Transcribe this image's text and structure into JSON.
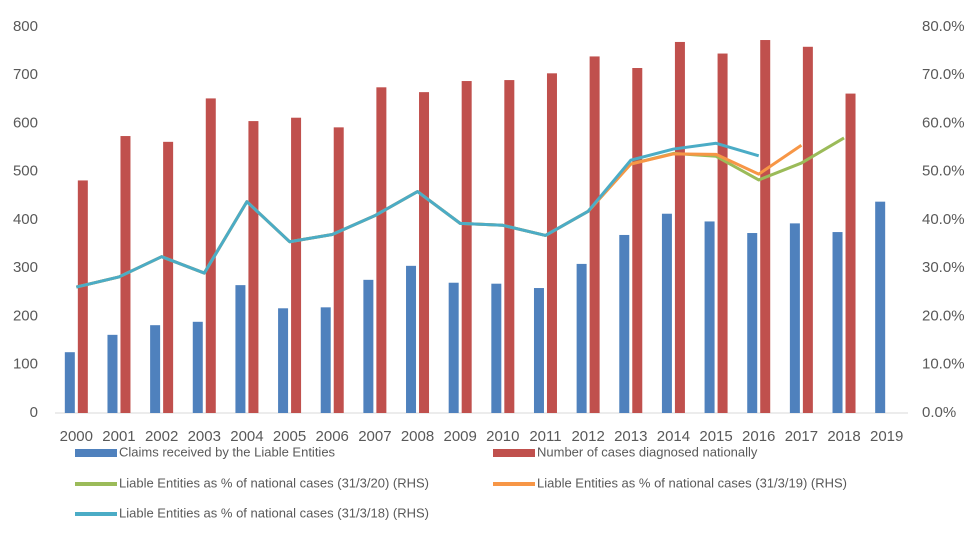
{
  "chart_data": {
    "type": "bar",
    "categories": [
      "2000",
      "2001",
      "2002",
      "2003",
      "2004",
      "2005",
      "2006",
      "2007",
      "2008",
      "2009",
      "2010",
      "2011",
      "2012",
      "2013",
      "2014",
      "2015",
      "2016",
      "2017",
      "2018",
      "2019"
    ],
    "series": [
      {
        "name": "Claims received by the Liable Entities",
        "type": "bar",
        "color": "#4f81bd",
        "values": [
          126,
          162,
          182,
          189,
          265,
          217,
          219,
          276,
          305,
          270,
          268,
          259,
          309,
          369,
          413,
          397,
          373,
          393,
          375,
          438
        ]
      },
      {
        "name": "Number of cases diagnosed nationally",
        "type": "bar",
        "color": "#c0504d",
        "values": [
          482,
          574,
          562,
          652,
          605,
          612,
          592,
          675,
          665,
          688,
          690,
          704,
          739,
          715,
          769,
          745,
          773,
          759,
          662,
          null
        ]
      },
      {
        "name": "Liable Entities as % of national cases (31/3/20) (RHS)",
        "type": "line",
        "axis": "y2",
        "color": "#9bbb59",
        "values": [
          26.1,
          28.2,
          32.4,
          29.0,
          43.8,
          35.5,
          37.0,
          40.9,
          45.9,
          39.3,
          38.9,
          36.8,
          41.8,
          51.6,
          53.8,
          53.2,
          48.3,
          51.8,
          57.0,
          null
        ]
      },
      {
        "name": "Liable Entities as % of national cases (31/3/19) (RHS)",
        "type": "line",
        "axis": "y2",
        "color": "#f79646",
        "values": [
          26.1,
          28.2,
          32.4,
          29.0,
          43.8,
          35.5,
          37.0,
          40.9,
          45.9,
          39.3,
          38.9,
          36.8,
          41.8,
          51.6,
          53.7,
          53.6,
          49.5,
          55.5,
          null,
          null
        ]
      },
      {
        "name": "Liable Entities as % of national cases (31/3/18) (RHS)",
        "type": "line",
        "axis": "y2",
        "color": "#4bacc6",
        "values": [
          26.1,
          28.2,
          32.4,
          29.0,
          43.8,
          35.5,
          37.0,
          40.9,
          45.9,
          39.3,
          38.9,
          36.8,
          41.8,
          52.4,
          54.7,
          55.9,
          53.3,
          null,
          null,
          null
        ]
      }
    ],
    "ylim": [
      0,
      800
    ],
    "yticks": [
      0,
      100,
      200,
      300,
      400,
      500,
      600,
      700,
      800
    ],
    "y2lim": [
      0,
      80
    ],
    "y2ticks": [
      {
        "value": 0,
        "label": "0.0%"
      },
      {
        "value": 10,
        "label": "10.0%"
      },
      {
        "value": 20,
        "label": "20.0%"
      },
      {
        "value": 30,
        "label": "30.0%"
      },
      {
        "value": 40,
        "label": "40.0%"
      },
      {
        "value": 50,
        "label": "50.0%"
      },
      {
        "value": 60,
        "label": "60.0%"
      },
      {
        "value": 70,
        "label": "70.0%"
      },
      {
        "value": 80,
        "label": "80.0%"
      }
    ],
    "grid": false,
    "legend": "bottom"
  }
}
